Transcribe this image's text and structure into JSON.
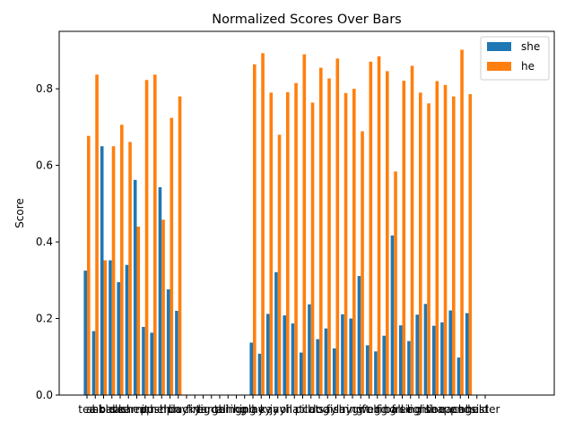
{
  "chart_data": {
    "type": "bar",
    "title": "Normalized Scores Over Bars",
    "xlabel": "",
    "ylabel": "Score",
    "ylim": [
      0,
      0.95
    ],
    "yticks": [
      0.0,
      0.2,
      0.4,
      0.6,
      0.8
    ],
    "ytick_labels": [
      "0.0",
      "0.2",
      "0.4",
      "0.6",
      "0.8"
    ],
    "grid": false,
    "legend_position": "top-right",
    "categories": [
      "tea",
      "ask",
      "hold",
      "back",
      "see",
      "learn",
      "cheap",
      "it",
      "push",
      "help",
      "thin",
      "bay",
      "lucky",
      "fire",
      "tig",
      "large",
      "call",
      "thing",
      "ring",
      "king",
      "play",
      "hey",
      "kay",
      "jay",
      "oil",
      "hat",
      "pill",
      "cat",
      "dog",
      "say",
      "fish",
      "lay",
      "ring",
      "gift",
      "wolf",
      "egg",
      "ring",
      "ball",
      "free",
      "sing",
      "light",
      "rise",
      "lion",
      "happ",
      "each",
      "end",
      "age",
      "hold",
      "sister"
    ],
    "series": [
      {
        "name": "she",
        "color": "#1f77b4",
        "values": [
          0.325,
          0.167,
          0.65,
          0.352,
          0.295,
          0.34,
          0.562,
          0.178,
          0.163,
          0.543,
          0.276,
          0.22,
          null,
          null,
          null,
          null,
          null,
          null,
          null,
          null,
          0.137,
          0.108,
          0.212,
          0.321,
          0.208,
          0.187,
          0.111,
          0.237,
          0.146,
          0.174,
          0.122,
          0.211,
          0.2,
          0.311,
          0.13,
          0.114,
          0.155,
          0.417,
          0.182,
          0.141,
          0.21,
          0.238,
          0.181,
          0.19,
          0.221,
          0.098,
          0.214,
          null,
          null
        ]
      },
      {
        "name": "he",
        "color": "#ff7f0e",
        "values": [
          0.677,
          0.837,
          0.352,
          0.65,
          0.706,
          0.661,
          0.44,
          0.823,
          0.837,
          0.458,
          0.724,
          0.78,
          null,
          null,
          null,
          null,
          null,
          null,
          null,
          null,
          0.864,
          0.893,
          0.79,
          0.68,
          0.791,
          0.815,
          0.89,
          0.764,
          0.855,
          0.827,
          0.879,
          0.789,
          0.8,
          0.689,
          0.871,
          0.885,
          0.846,
          0.584,
          0.821,
          0.86,
          0.79,
          0.762,
          0.82,
          0.81,
          0.78,
          0.902,
          0.786,
          null,
          null
        ]
      }
    ]
  }
}
